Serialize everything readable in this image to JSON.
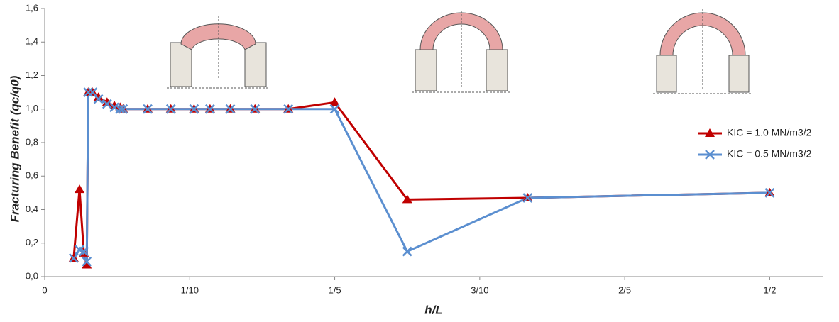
{
  "chart_data": {
    "type": "line",
    "y_label": "Fracturing Benefit (qc/q0)",
    "x_label": "h/L",
    "x": [
      0.02,
      0.024,
      0.027,
      0.029,
      0.03,
      0.033,
      0.037,
      0.043,
      0.048,
      0.052,
      0.054,
      0.071,
      0.087,
      0.103,
      0.114,
      0.128,
      0.145,
      0.168,
      0.2,
      0.25,
      0.333,
      0.5
    ],
    "series": [
      {
        "name": "KIC = 1.0 MN/m3/2",
        "color": "#c00000",
        "marker": "triangle",
        "values": [
          0.11,
          0.52,
          0.14,
          0.07,
          1.1,
          1.1,
          1.07,
          1.04,
          1.02,
          1.01,
          1.0,
          1.0,
          1.0,
          1.0,
          1.0,
          1.0,
          1.0,
          1.0,
          1.04,
          0.46,
          0.47,
          0.5
        ]
      },
      {
        "name": "KIC = 0.5 MN/m3/2",
        "color": "#5b8fd0",
        "marker": "x",
        "values": [
          0.11,
          0.16,
          0.15,
          0.09,
          1.1,
          1.1,
          1.06,
          1.03,
          1.01,
          1.0,
          1.0,
          1.0,
          1.0,
          1.0,
          1.0,
          1.0,
          1.0,
          1.0,
          1.0,
          0.15,
          0.47,
          0.5
        ]
      }
    ],
    "xlim": [
      0,
      0.537
    ],
    "ylim": [
      0,
      1.6
    ],
    "xticks": [
      0,
      {
        "value": 0.1,
        "label": "1/10"
      },
      {
        "value": 0.2,
        "label": "1/5"
      },
      {
        "value": 0.3,
        "label": "3/10"
      },
      {
        "value": 0.4,
        "label": "2/5"
      },
      {
        "value": 0.5,
        "label": "1/2"
      }
    ],
    "yticks": [
      {
        "value": 0,
        "label": "0,0"
      },
      {
        "value": 0.2,
        "label": "0,2"
      },
      {
        "value": 0.4,
        "label": "0,4"
      },
      {
        "value": 0.6,
        "label": "0,6"
      },
      {
        "value": 0.8,
        "label": "0,8"
      },
      {
        "value": 1.0,
        "label": "1,0"
      },
      {
        "value": 1.2,
        "label": "1,2"
      },
      {
        "value": 1.4,
        "label": "1,4"
      },
      {
        "value": 1.6,
        "label": "1,6"
      }
    ],
    "grid": false,
    "legend_position": "right"
  }
}
